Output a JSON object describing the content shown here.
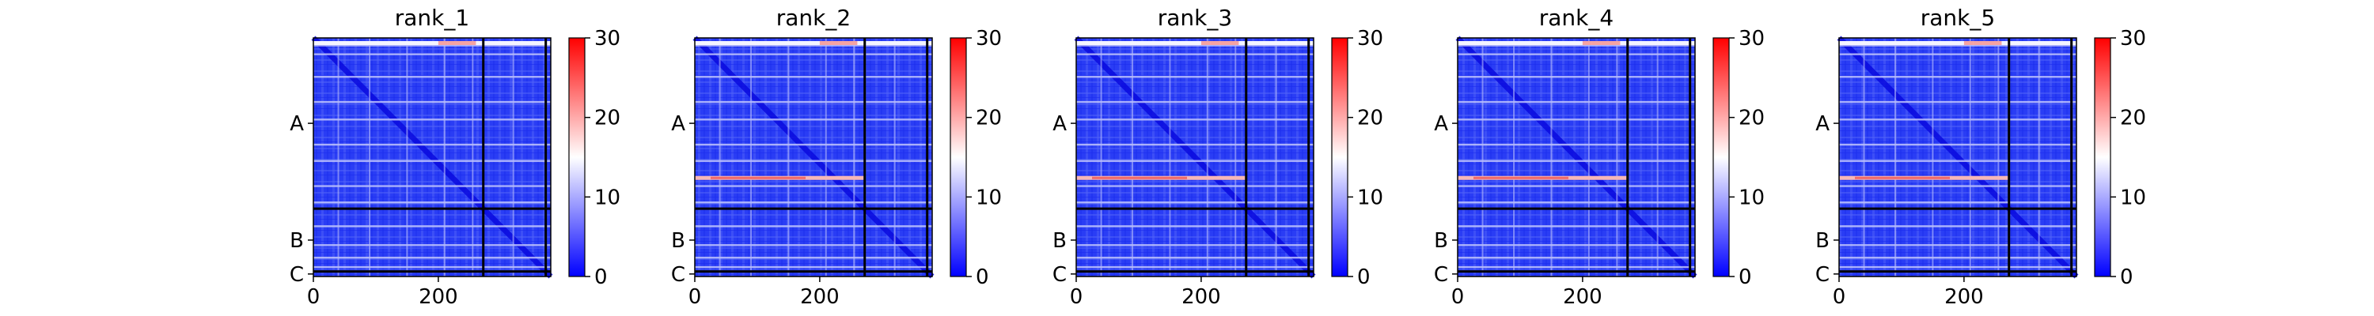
{
  "chart_data": {
    "type": "heatmap",
    "colormap": [
      "#0000ff",
      "#ffffff",
      "#ff0000"
    ],
    "color_range": [
      0,
      30
    ],
    "colorbar_ticks": [
      0,
      10,
      20,
      30
    ],
    "x_range": [
      0,
      380
    ],
    "x_ticks": [
      0,
      200
    ],
    "domain_boundaries": [
      272,
      372
    ],
    "domain_labels": [
      "A",
      "B",
      "C"
    ],
    "grid": false,
    "panels": [
      {
        "title": "rank_1",
        "high_error_rows": []
      },
      {
        "title": "rank_2",
        "high_error_rows": [
          223
        ]
      },
      {
        "title": "rank_3",
        "high_error_rows": [
          223
        ]
      },
      {
        "title": "rank_4",
        "high_error_rows": [
          223
        ]
      },
      {
        "title": "rank_5",
        "high_error_rows": [
          223
        ]
      }
    ]
  }
}
